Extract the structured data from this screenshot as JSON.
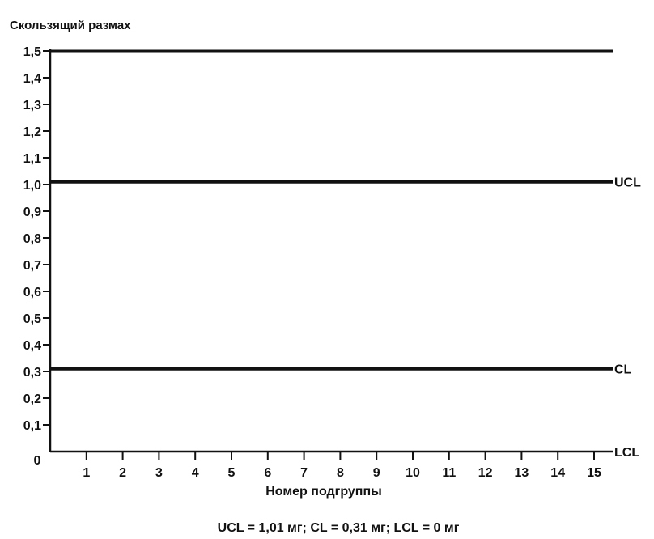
{
  "chart_data": {
    "type": "line",
    "ylabel": "Скользящий размах",
    "xlabel": "Номер подгруппы",
    "footnote": "UCL = 1,01 мг; CL = 0,31 мг; LCL = 0 мг",
    "x_ticks": [
      "1",
      "2",
      "3",
      "4",
      "5",
      "6",
      "7",
      "8",
      "9",
      "10",
      "11",
      "12",
      "13",
      "14",
      "15"
    ],
    "y_ticks": [
      {
        "value": 0,
        "label": "0"
      },
      {
        "value": 0.1,
        "label": "0,1"
      },
      {
        "value": 0.2,
        "label": "0,2"
      },
      {
        "value": 0.3,
        "label": "0,3"
      },
      {
        "value": 0.4,
        "label": "0,4"
      },
      {
        "value": 0.5,
        "label": "0,5"
      },
      {
        "value": 0.6,
        "label": "0,6"
      },
      {
        "value": 0.7,
        "label": "0,7"
      },
      {
        "value": 0.8,
        "label": "0,8"
      },
      {
        "value": 0.9,
        "label": "0,9"
      },
      {
        "value": 1.0,
        "label": "1,0"
      },
      {
        "value": 1.1,
        "label": "1,1"
      },
      {
        "value": 1.2,
        "label": "1,2"
      },
      {
        "value": 1.3,
        "label": "1,3"
      },
      {
        "value": 1.4,
        "label": "1,4"
      },
      {
        "value": 1.5,
        "label": "1,5"
      }
    ],
    "ylim": [
      0,
      1.5
    ],
    "xlim": [
      0,
      16
    ],
    "grid": false,
    "control_lines": [
      {
        "name": "UCL",
        "value": 1.01
      },
      {
        "name": "CL",
        "value": 0.31
      },
      {
        "name": "LCL",
        "value": 0
      }
    ],
    "top_line_value": 1.5
  }
}
